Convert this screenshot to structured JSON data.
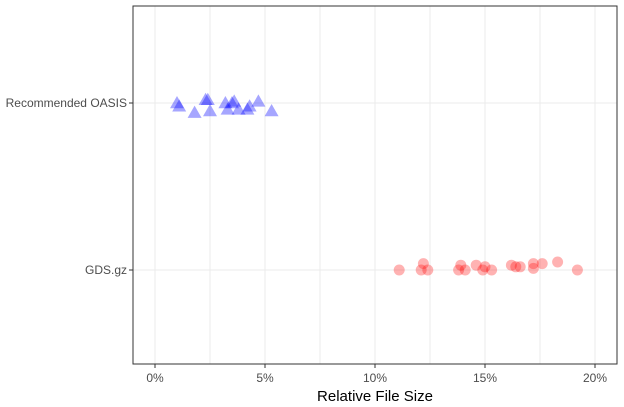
{
  "chart_data": {
    "type": "scatter",
    "title": "",
    "xlabel": "Relative File Size",
    "ylabel": "",
    "xlim": [
      -1,
      21
    ],
    "x_ticks": [
      0,
      5,
      10,
      15,
      20
    ],
    "x_tick_labels": [
      "0%",
      "5%",
      "10%",
      "15%",
      "20%"
    ],
    "categories": [
      "Recommended OASIS",
      "GDS.gz"
    ],
    "grid": true,
    "legend": "none",
    "series": [
      {
        "category": "Recommended OASIS",
        "marker": "triangle",
        "color": "#0000FF",
        "x": [
          1.0,
          1.1,
          1.8,
          2.3,
          2.4,
          2.5,
          3.2,
          3.3,
          3.5,
          3.6,
          3.8,
          4.2,
          4.3,
          4.7,
          5.3
        ],
        "jitter": [
          0.0,
          -0.02,
          -0.06,
          0.02,
          0.02,
          -0.05,
          0.0,
          -0.04,
          0.0,
          0.01,
          -0.04,
          -0.04,
          -0.02,
          0.01,
          -0.05
        ]
      },
      {
        "category": "GDS.gz",
        "marker": "circle",
        "color": "#FF0000",
        "x": [
          11.1,
          12.1,
          12.2,
          12.4,
          13.8,
          13.9,
          14.1,
          14.6,
          14.9,
          15.0,
          15.3,
          16.2,
          16.4,
          16.6,
          17.2,
          17.2,
          17.6,
          18.3,
          19.2
        ],
        "jitter": [
          0.0,
          0.0,
          0.04,
          0.0,
          0.0,
          0.03,
          0.0,
          0.03,
          0.0,
          0.02,
          0.0,
          0.03,
          0.02,
          0.02,
          0.04,
          0.01,
          0.04,
          0.05,
          0.0
        ]
      }
    ]
  }
}
